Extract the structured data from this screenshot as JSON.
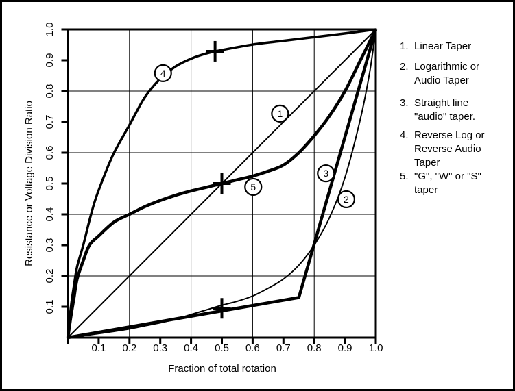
{
  "figure": {
    "ink": "#000000",
    "background": "#ffffff"
  },
  "chart_data": {
    "type": "line",
    "title": "",
    "xlabel": "Fraction of total rotation",
    "ylabel": "Resistance or Voltage Division Ratio",
    "xlim": [
      0,
      1
    ],
    "ylim": [
      0,
      1
    ],
    "grid": true,
    "grid_lines": [
      0.2,
      0.4,
      0.6,
      0.8
    ],
    "x_ticks": [
      0,
      0.1,
      0.2,
      0.3,
      0.4,
      0.5,
      0.6,
      0.7,
      0.8,
      0.9,
      1.0
    ],
    "y_ticks": [
      0.1,
      0.2,
      0.3,
      0.4,
      0.5,
      0.6,
      0.7,
      0.8,
      0.9,
      1.0
    ],
    "x_tick_labels": [
      "0.1",
      "0.2",
      "0.3",
      "0.4",
      "0.5",
      "0.6",
      "0.7",
      "0.8",
      "0.9",
      "1.0"
    ],
    "y_tick_labels": [
      "0.1",
      "0.2",
      "0.3",
      "0.4",
      "0.5",
      "0.6",
      "0.7",
      "0.8",
      "0.9",
      "1.0"
    ],
    "series": [
      {
        "id": 1,
        "name": "Linear Taper",
        "stroke_width": 2,
        "smooth": false,
        "points": [
          [
            0,
            0
          ],
          [
            1,
            1
          ]
        ]
      },
      {
        "id": 2,
        "name": "Logarithmic or Audio Taper",
        "stroke_width": 2,
        "smooth": true,
        "points": [
          [
            0,
            0
          ],
          [
            0.05,
            0.006
          ],
          [
            0.1,
            0.013
          ],
          [
            0.15,
            0.02
          ],
          [
            0.2,
            0.028
          ],
          [
            0.25,
            0.038
          ],
          [
            0.3,
            0.048
          ],
          [
            0.35,
            0.06
          ],
          [
            0.4,
            0.075
          ],
          [
            0.45,
            0.09
          ],
          [
            0.5,
            0.105
          ],
          [
            0.55,
            0.118
          ],
          [
            0.6,
            0.135
          ],
          [
            0.65,
            0.16
          ],
          [
            0.7,
            0.19
          ],
          [
            0.75,
            0.235
          ],
          [
            0.8,
            0.3
          ],
          [
            0.85,
            0.39
          ],
          [
            0.9,
            0.52
          ],
          [
            0.95,
            0.71
          ],
          [
            0.98,
            0.86
          ],
          [
            1,
            1
          ]
        ]
      },
      {
        "id": 3,
        "name": "Straight line \"audio\" taper.",
        "stroke_width": 4.5,
        "smooth": false,
        "points": [
          [
            0,
            0
          ],
          [
            0.75,
            0.13
          ],
          [
            1,
            1
          ]
        ]
      },
      {
        "id": 4,
        "name": "Reverse Log or Reverse Audio Taper",
        "stroke_width": 3.5,
        "smooth": true,
        "points": [
          [
            0,
            0
          ],
          [
            0.01,
            0.1
          ],
          [
            0.02,
            0.17
          ],
          [
            0.03,
            0.23
          ],
          [
            0.05,
            0.3
          ],
          [
            0.07,
            0.38
          ],
          [
            0.09,
            0.45
          ],
          [
            0.12,
            0.53
          ],
          [
            0.15,
            0.6
          ],
          [
            0.2,
            0.69
          ],
          [
            0.25,
            0.78
          ],
          [
            0.3,
            0.84
          ],
          [
            0.35,
            0.88
          ],
          [
            0.4,
            0.905
          ],
          [
            0.45,
            0.922
          ],
          [
            0.5,
            0.933
          ],
          [
            0.6,
            0.951
          ],
          [
            0.7,
            0.963
          ],
          [
            0.8,
            0.975
          ],
          [
            0.9,
            0.987
          ],
          [
            1,
            1
          ]
        ]
      },
      {
        "id": 5,
        "name": "\"G\", \"W\" or \"S\" taper",
        "stroke_width": 4.5,
        "smooth": true,
        "points": [
          [
            0,
            0
          ],
          [
            0.01,
            0.07
          ],
          [
            0.02,
            0.13
          ],
          [
            0.03,
            0.19
          ],
          [
            0.05,
            0.25
          ],
          [
            0.07,
            0.3
          ],
          [
            0.1,
            0.33
          ],
          [
            0.15,
            0.375
          ],
          [
            0.2,
            0.4
          ],
          [
            0.25,
            0.425
          ],
          [
            0.3,
            0.445
          ],
          [
            0.35,
            0.462
          ],
          [
            0.4,
            0.476
          ],
          [
            0.45,
            0.488
          ],
          [
            0.5,
            0.5
          ],
          [
            0.55,
            0.512
          ],
          [
            0.6,
            0.524
          ],
          [
            0.65,
            0.54
          ],
          [
            0.7,
            0.56
          ],
          [
            0.75,
            0.6
          ],
          [
            0.8,
            0.655
          ],
          [
            0.85,
            0.72
          ],
          [
            0.9,
            0.8
          ],
          [
            0.95,
            0.9
          ],
          [
            1,
            1
          ]
        ]
      }
    ],
    "half_rotation_markers": [
      {
        "x": 0.478,
        "y": 0.929
      },
      {
        "x": 0.5,
        "y": 0.5
      },
      {
        "x": 0.5,
        "y": 0.095
      }
    ],
    "curve_badges": [
      {
        "text": "1",
        "x": 0.689,
        "y": 0.727
      },
      {
        "text": "2",
        "x": 0.904,
        "y": 0.449
      },
      {
        "text": "3",
        "x": 0.838,
        "y": 0.533
      },
      {
        "text": "4",
        "x": 0.309,
        "y": 0.858
      },
      {
        "text": "5",
        "x": 0.602,
        "y": 0.489
      }
    ]
  },
  "legend": {
    "items": [
      {
        "number": "1.",
        "text": "Linear Taper"
      },
      {
        "number": "2.",
        "text": "Logarithmic or Audio Taper"
      },
      {
        "number": "3.",
        "text": "Straight line \"audio\" taper."
      },
      {
        "number": "4.",
        "text": "Reverse Log or Reverse Audio Taper"
      },
      {
        "number": "5.",
        "text": "\"G\", \"W\" or \"S\" taper"
      }
    ]
  }
}
